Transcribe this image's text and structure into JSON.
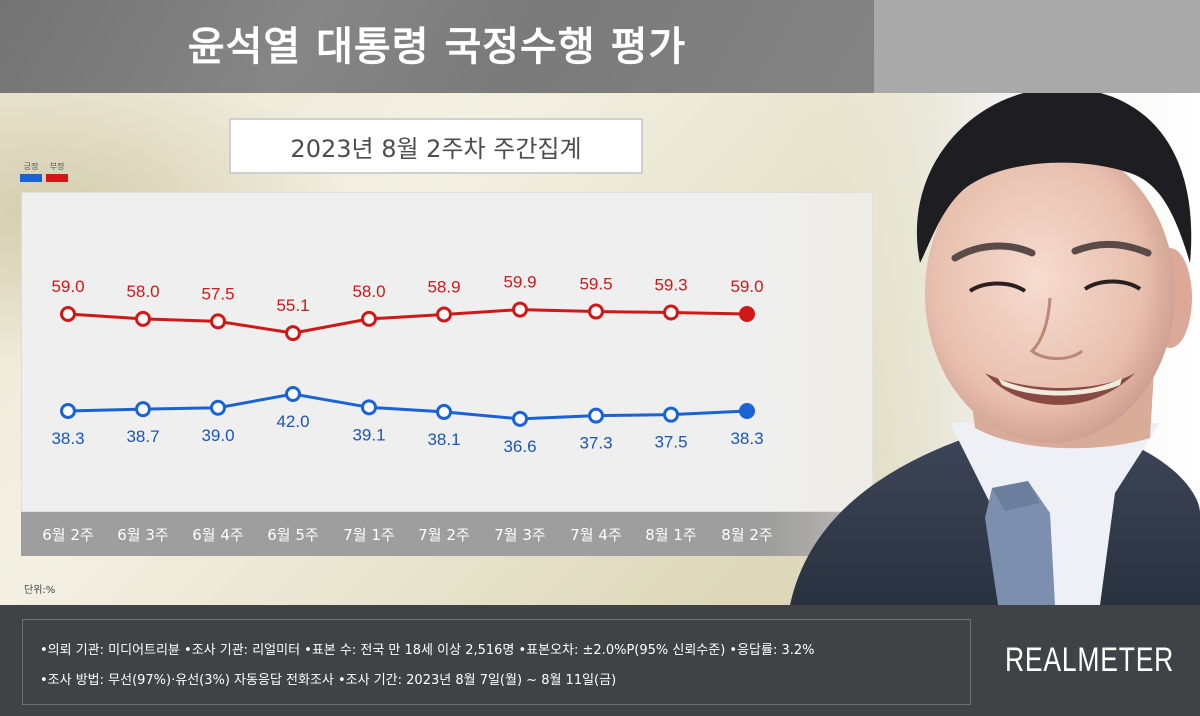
{
  "header": {
    "title": "윤석열 대통령 국정수행 평가",
    "subtitle": "2023년 8월 2주차 주간집계"
  },
  "legend": [
    {
      "label": "긍정",
      "color": "#1a62d6"
    },
    {
      "label": "부정",
      "color": "#d01818"
    }
  ],
  "unit_label": "단위:%",
  "chart_data": {
    "type": "line",
    "title": "윤석열 대통령 국정수행 평가",
    "subtitle": "2023년 8월 2주차 주간집계",
    "xlabel": "",
    "ylabel": "단위:%",
    "categories": [
      "6월 2주",
      "6월 3주",
      "6월 4주",
      "6월 5주",
      "7월 1주",
      "7월 2주",
      "7월 3주",
      "7월 4주",
      "8월 1주",
      "8월 2주"
    ],
    "series": [
      {
        "name": "부정",
        "color": "#d01818",
        "values": [
          59.0,
          58.0,
          57.5,
          55.1,
          58.0,
          58.9,
          59.9,
          59.5,
          59.3,
          59.0
        ],
        "labels": [
          "59.0",
          "58.0",
          "57.5",
          "55.1",
          "58.0",
          "58.9",
          "59.9",
          "59.5",
          "59.3",
          "59.0"
        ]
      },
      {
        "name": "긍정",
        "color": "#1a62d6",
        "values": [
          38.3,
          38.7,
          39.0,
          42.0,
          39.1,
          38.1,
          36.6,
          37.3,
          37.5,
          38.3
        ],
        "labels": [
          "38.3",
          "38.7",
          "39.0",
          "42.0",
          "39.1",
          "38.1",
          "36.6",
          "37.3",
          "37.5",
          "38.3"
        ]
      }
    ],
    "grid": false,
    "legend_position": "top-left",
    "last_point_filled": true
  },
  "footer": {
    "line1": "•의뢰 기관: 미디어트리뷴 •조사 기관: 리얼미터 •표본 수: 전국 만 18세 이상 2,516명 •표본오차: ±2.0%P(95% 신뢰수준) •응답률: 3.2%",
    "line2": "•조사 방법: 무선(97%)·유선(3%) 자동응답 전화조사 •조사 기간: 2023년 8월 7일(월) ~ 8월 11일(금)",
    "brand": "REALMETER"
  }
}
